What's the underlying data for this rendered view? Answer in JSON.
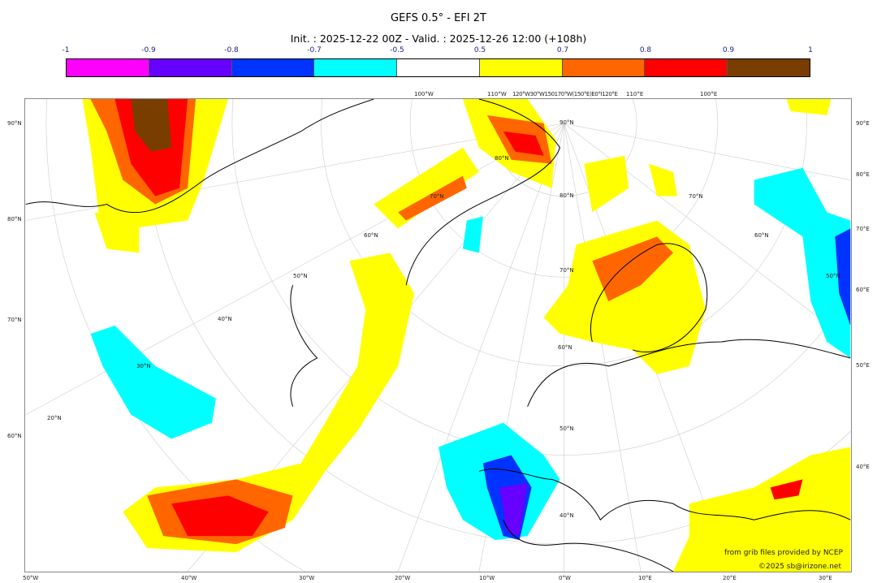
{
  "title": "GEFS 0.5° - EFI 2T",
  "subtitle": "Init. : 2025-12-22 00Z - Valid. : 2025-12-26 12:00 (+108h)",
  "colorbar": {
    "ticks": [
      "-1",
      "-0.9",
      "-0.8",
      "-0.7",
      "-0.5",
      "0.5",
      "0.7",
      "0.8",
      "0.9",
      "1"
    ],
    "colors": [
      "#ff00ff",
      "#6600ff",
      "#0033ff",
      "#00ffff",
      "#ffffff",
      "#ffff00",
      "#ff6600",
      "#ff0000",
      "#7a3d00"
    ]
  },
  "map": {
    "left_labels": [
      "90°N",
      "80°N",
      "70°N",
      "60°N"
    ],
    "right_labels": [
      "90°E",
      "80°E",
      "70°E",
      "60°E",
      "50°E",
      "40°E"
    ],
    "bottom_labels": [
      "50°W",
      "40°W",
      "30°W",
      "20°W",
      "10°W",
      "0°W",
      "10°E",
      "20°E",
      "30°E"
    ],
    "top_labels": [
      "100°W",
      "110°W",
      "120°W30°W150170°W(150°E)E0°I120°E",
      "110°E",
      "100°E"
    ],
    "inner_labels": [
      "90°N",
      "80°N",
      "70°N",
      "60°N",
      "50°N",
      "40°N",
      "30°N",
      "20°N",
      "80°N",
      "70°N",
      "60°N",
      "50°N",
      "70°N",
      "60°N",
      "50°N",
      "40°N"
    ]
  },
  "credits": {
    "source": "from grib files provided by NCEP",
    "copyright": "©2025 sb@irizone.net"
  }
}
